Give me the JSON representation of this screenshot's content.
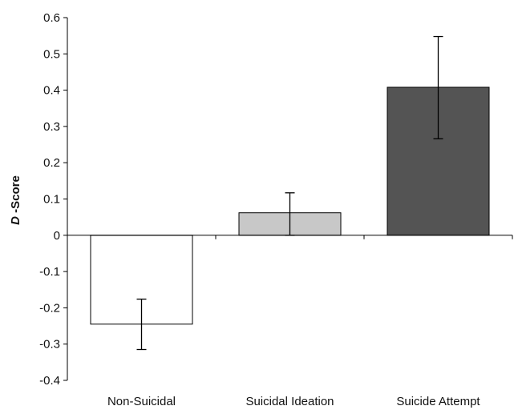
{
  "chart_data": {
    "type": "bar",
    "categories": [
      "Non-Suicidal",
      "Suicidal Ideation",
      "Suicide Attempt"
    ],
    "values": [
      -0.245,
      0.062,
      0.408
    ],
    "error_bars": {
      "lower": [
        -0.315,
        0.0,
        0.266
      ],
      "upper": [
        -0.176,
        0.117,
        0.548
      ]
    },
    "ylabel_italic": "D",
    "ylabel_rest": " -Score",
    "ylim": [
      -0.4,
      0.6
    ],
    "yticks": [
      "0.6",
      "0.5",
      "0.4",
      "0.3",
      "0.2",
      "0.1",
      "0",
      "-0.1",
      "-0.2",
      "-0.3",
      "-0.4"
    ],
    "ytick_values": [
      0.6,
      0.5,
      0.4,
      0.3,
      0.2,
      0.1,
      0,
      -0.1,
      -0.2,
      -0.3,
      -0.4
    ],
    "bar_colors": [
      "#ffffff",
      "#c8c8c8",
      "#545454"
    ],
    "grid": false
  }
}
